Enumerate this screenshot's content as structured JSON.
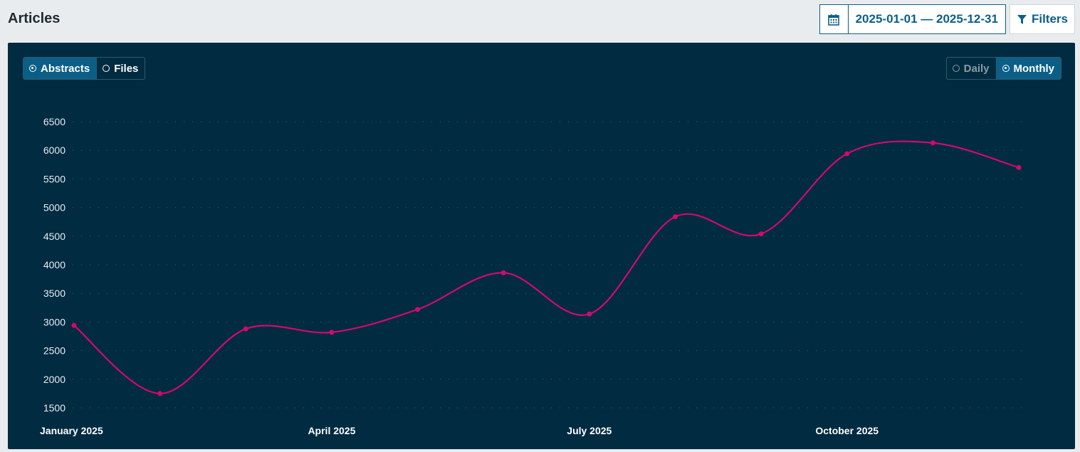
{
  "header": {
    "title": "Articles",
    "date_range": "2025-01-01 — 2025-12-31",
    "filters_label": "Filters",
    "calendar_icon": "calendar-icon",
    "filter_icon": "funnel-icon"
  },
  "metric_toggle": {
    "options": [
      {
        "label": "Abstracts",
        "selected": true
      },
      {
        "label": "Files",
        "selected": false
      }
    ]
  },
  "interval_toggle": {
    "options": [
      {
        "label": "Daily",
        "selected": false
      },
      {
        "label": "Monthly",
        "selected": true
      }
    ]
  },
  "colors": {
    "accent": "#0b5f86",
    "panel_bg": "#002b41",
    "line": "#d10a6e"
  },
  "chart_data": {
    "type": "line",
    "title": "",
    "xlabel": "",
    "ylabel": "",
    "x": [
      "2025-01",
      "2025-02",
      "2025-03",
      "2025-04",
      "2025-05",
      "2025-06",
      "2025-07",
      "2025-08",
      "2025-09",
      "2025-10",
      "2025-11",
      "2025-12"
    ],
    "x_tick_labels": [
      {
        "month_index": 0,
        "label": "January 2025"
      },
      {
        "month_index": 3,
        "label": "April 2025"
      },
      {
        "month_index": 6,
        "label": "July 2025"
      },
      {
        "month_index": 9,
        "label": "October 2025"
      }
    ],
    "values": [
      2940,
      1750,
      2880,
      2820,
      3220,
      3860,
      3140,
      4840,
      4540,
      5940,
      6130,
      5700
    ],
    "y_ticks": [
      1500,
      2000,
      2500,
      3000,
      3500,
      4000,
      4500,
      5000,
      5500,
      6000,
      6500
    ],
    "ylim": [
      1500,
      6500
    ],
    "grid": true,
    "legend": "none"
  }
}
